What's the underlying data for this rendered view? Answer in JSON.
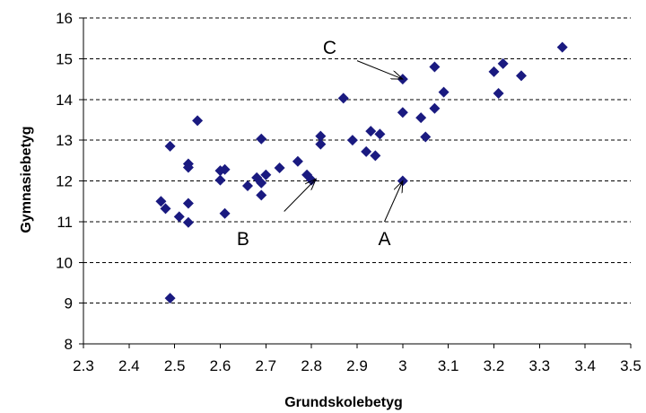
{
  "chart_data": {
    "type": "scatter",
    "xlabel": "Grundskolebetyg",
    "ylabel": "Gymnasiebetyg",
    "xlim": [
      2.3,
      3.5
    ],
    "ylim": [
      8,
      16
    ],
    "x_ticks": [
      "2.3",
      "2.4",
      "2.5",
      "2.6",
      "2.7",
      "2.8",
      "2.9",
      "3",
      "3.1",
      "3.2",
      "3.3",
      "3.4",
      "3.5"
    ],
    "y_ticks": [
      "8",
      "9",
      "10",
      "11",
      "12",
      "13",
      "14",
      "15",
      "16"
    ],
    "grid": "horizontal dashed",
    "marker": "diamond",
    "marker_color": "#1a1a80",
    "points": [
      {
        "x": 2.47,
        "y": 11.5
      },
      {
        "x": 2.48,
        "y": 11.32
      },
      {
        "x": 2.49,
        "y": 12.85
      },
      {
        "x": 2.49,
        "y": 9.12
      },
      {
        "x": 2.51,
        "y": 11.12
      },
      {
        "x": 2.53,
        "y": 12.42
      },
      {
        "x": 2.53,
        "y": 12.33
      },
      {
        "x": 2.53,
        "y": 11.45
      },
      {
        "x": 2.53,
        "y": 10.98
      },
      {
        "x": 2.55,
        "y": 13.48
      },
      {
        "x": 2.6,
        "y": 12.25
      },
      {
        "x": 2.6,
        "y": 12.02
      },
      {
        "x": 2.61,
        "y": 12.28
      },
      {
        "x": 2.61,
        "y": 11.2
      },
      {
        "x": 2.66,
        "y": 11.88
      },
      {
        "x": 2.68,
        "y": 12.08
      },
      {
        "x": 2.69,
        "y": 13.03
      },
      {
        "x": 2.69,
        "y": 11.95
      },
      {
        "x": 2.69,
        "y": 11.65
      },
      {
        "x": 2.7,
        "y": 12.15
      },
      {
        "x": 2.73,
        "y": 12.32
      },
      {
        "x": 2.77,
        "y": 12.48
      },
      {
        "x": 2.79,
        "y": 12.15
      },
      {
        "x": 2.8,
        "y": 12.02
      },
      {
        "x": 2.82,
        "y": 13.1
      },
      {
        "x": 2.82,
        "y": 12.9
      },
      {
        "x": 2.87,
        "y": 14.03
      },
      {
        "x": 2.89,
        "y": 13.0
      },
      {
        "x": 2.92,
        "y": 12.72
      },
      {
        "x": 2.93,
        "y": 13.22
      },
      {
        "x": 2.94,
        "y": 12.62
      },
      {
        "x": 2.95,
        "y": 13.15
      },
      {
        "x": 3.0,
        "y": 14.5
      },
      {
        "x": 3.0,
        "y": 13.68
      },
      {
        "x": 3.0,
        "y": 12.0
      },
      {
        "x": 3.04,
        "y": 13.55
      },
      {
        "x": 3.05,
        "y": 13.08
      },
      {
        "x": 3.07,
        "y": 14.8
      },
      {
        "x": 3.07,
        "y": 13.78
      },
      {
        "x": 3.09,
        "y": 14.18
      },
      {
        "x": 3.2,
        "y": 14.68
      },
      {
        "x": 3.21,
        "y": 14.15
      },
      {
        "x": 3.22,
        "y": 14.88
      },
      {
        "x": 3.26,
        "y": 14.58
      },
      {
        "x": 3.35,
        "y": 15.28
      }
    ],
    "annotations": [
      {
        "label": "A",
        "x": 2.96,
        "y": 10.6,
        "arrow_from": [
          2.96,
          11.0
        ],
        "arrow_to": [
          3.0,
          12.0
        ]
      },
      {
        "label": "B",
        "x": 2.65,
        "y": 10.6,
        "arrow_from": [
          2.74,
          11.25
        ],
        "arrow_to": [
          2.81,
          12.05
        ]
      },
      {
        "label": "C",
        "x": 2.84,
        "y": 15.3,
        "arrow_from": [
          2.9,
          14.95
        ],
        "arrow_to": [
          3.0,
          14.5
        ]
      }
    ]
  }
}
